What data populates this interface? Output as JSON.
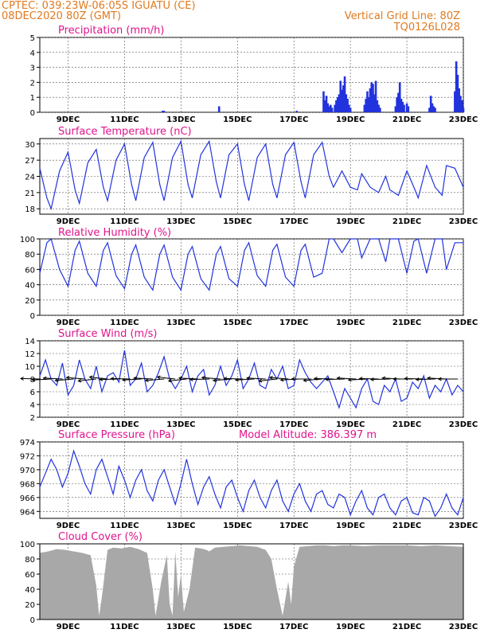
{
  "header": {
    "line1_left": "CPTEC:   039:23W-06:05S  IGUATU (CE)",
    "line2_left": "08DEC2020 80Z (GMT)",
    "line1_right": "Vertical Grid Line: 80Z",
    "line2_right": "TQ0126L028"
  },
  "colors": {
    "header": "#e07a1f",
    "panel_title": "#e0148c",
    "series": "#2233dd",
    "cloud": "#a8a8a8",
    "axis": "#000000"
  },
  "x_axis_labels": [
    "9DEC",
    "11DEC",
    "13DEC",
    "15DEC",
    "17DEC",
    "19DEC",
    "21DEC",
    "23DEC"
  ],
  "chart_data": [
    {
      "id": "precip",
      "type": "bar",
      "title": "Precipitation (mm/h)",
      "ylim": [
        0,
        5
      ],
      "yticks": [
        0,
        1,
        2,
        3,
        4,
        5
      ],
      "xlim": [
        8.0,
        23.0
      ],
      "x": [
        12.35,
        12.4,
        14.35,
        17.1,
        18.05,
        18.1,
        18.15,
        18.2,
        18.25,
        18.3,
        18.35,
        18.45,
        18.5,
        18.55,
        18.6,
        18.65,
        18.7,
        18.75,
        18.8,
        18.85,
        18.9,
        18.95,
        19.0,
        19.5,
        19.55,
        19.6,
        19.65,
        19.7,
        19.75,
        19.8,
        19.85,
        19.9,
        19.95,
        20.0,
        20.05,
        20.6,
        20.65,
        20.7,
        20.75,
        20.8,
        20.85,
        20.9,
        21.0,
        21.05,
        21.8,
        21.85,
        21.9,
        21.95,
        22.0,
        22.7,
        22.75,
        22.8,
        22.85,
        22.9,
        22.95,
        23.0
      ],
      "values": [
        0.1,
        0.1,
        0.4,
        0.1,
        1.4,
        0.8,
        1.1,
        0.6,
        0.4,
        0.5,
        0.3,
        0.5,
        0.8,
        1.0,
        1.2,
        2.1,
        1.5,
        1.8,
        2.4,
        1.2,
        0.9,
        0.5,
        0.3,
        0.5,
        0.9,
        1.4,
        1.0,
        1.6,
        2.0,
        1.9,
        1.2,
        2.1,
        0.8,
        0.5,
        0.3,
        0.4,
        1.0,
        1.3,
        2.0,
        0.9,
        0.7,
        0.5,
        0.6,
        0.4,
        0.3,
        1.1,
        0.6,
        0.4,
        0.3,
        1.4,
        3.4,
        2.5,
        1.6,
        1.1,
        0.8,
        0.3
      ]
    },
    {
      "id": "temperature",
      "type": "line",
      "title": "Surface Temperature (nC)",
      "ylim": [
        17,
        31
      ],
      "yticks": [
        18,
        21,
        24,
        27,
        30
      ],
      "xlim": [
        8.0,
        23.0
      ],
      "x": [
        8.0,
        8.25,
        8.4,
        8.7,
        9.0,
        9.25,
        9.4,
        9.7,
        10.0,
        10.25,
        10.4,
        10.7,
        11.0,
        11.25,
        11.4,
        11.7,
        12.0,
        12.25,
        12.4,
        12.7,
        13.0,
        13.25,
        13.4,
        13.7,
        14.0,
        14.25,
        14.4,
        14.7,
        15.0,
        15.25,
        15.4,
        15.7,
        16.0,
        16.25,
        16.4,
        16.7,
        17.0,
        17.25,
        17.4,
        17.7,
        18.0,
        18.25,
        18.4,
        18.7,
        19.0,
        19.25,
        19.4,
        19.7,
        20.0,
        20.25,
        20.4,
        20.7,
        21.0,
        21.25,
        21.4,
        21.7,
        22.0,
        22.25,
        22.4,
        22.7,
        23.0
      ],
      "values": [
        25.5,
        20.0,
        18.0,
        25.0,
        28.5,
        21.5,
        19.0,
        26.5,
        29.0,
        22.0,
        19.5,
        27.0,
        30.0,
        22.5,
        19.5,
        27.5,
        30.3,
        22.5,
        19.5,
        27.5,
        30.5,
        22.5,
        20.0,
        28.0,
        30.5,
        23.0,
        20.0,
        28.0,
        30.0,
        22.5,
        19.5,
        27.5,
        30.0,
        22.5,
        20.0,
        28.0,
        30.3,
        23.0,
        20.0,
        28.0,
        30.3,
        24.0,
        22.0,
        25.0,
        22.0,
        21.5,
        24.5,
        22.0,
        21.0,
        24.0,
        21.5,
        20.5,
        25.0,
        22.0,
        20.0,
        26.0,
        22.0,
        20.5,
        26.0,
        25.5,
        22.0
      ]
    },
    {
      "id": "humidity",
      "type": "line",
      "title": "Relative Humidity (%)",
      "ylim": [
        0,
        100
      ],
      "yticks": [
        0,
        20,
        40,
        60,
        80,
        100
      ],
      "xlim": [
        8.0,
        23.0
      ],
      "x": [
        8.0,
        8.25,
        8.4,
        8.7,
        9.0,
        9.25,
        9.4,
        9.7,
        10.0,
        10.25,
        10.4,
        10.7,
        11.0,
        11.25,
        11.4,
        11.7,
        12.0,
        12.25,
        12.4,
        12.7,
        13.0,
        13.25,
        13.4,
        13.7,
        14.0,
        14.25,
        14.4,
        14.7,
        15.0,
        15.25,
        15.4,
        15.7,
        16.0,
        16.25,
        16.4,
        16.7,
        17.0,
        17.25,
        17.4,
        17.7,
        18.0,
        18.25,
        18.4,
        18.7,
        19.0,
        19.25,
        19.4,
        19.7,
        20.0,
        20.25,
        20.4,
        20.7,
        21.0,
        21.25,
        21.4,
        21.7,
        22.0,
        22.25,
        22.4,
        22.7,
        23.0
      ],
      "values": [
        55,
        95,
        100,
        60,
        38,
        85,
        97,
        55,
        38,
        85,
        95,
        52,
        35,
        80,
        92,
        50,
        33,
        80,
        92,
        50,
        33,
        80,
        90,
        48,
        33,
        80,
        90,
        48,
        38,
        85,
        95,
        52,
        38,
        85,
        93,
        50,
        38,
        85,
        93,
        50,
        55,
        100,
        100,
        82,
        100,
        100,
        75,
        100,
        100,
        70,
        100,
        100,
        55,
        97,
        100,
        55,
        100,
        100,
        60,
        95,
        95
      ]
    },
    {
      "id": "wind",
      "type": "line",
      "title": "Surface Wind (m/s)",
      "ylim": [
        2,
        14
      ],
      "yticks": [
        2,
        4,
        6,
        8,
        10,
        12,
        14
      ],
      "xlim": [
        8.0,
        23.0
      ],
      "x": [
        8.0,
        8.2,
        8.4,
        8.6,
        8.8,
        9.0,
        9.2,
        9.4,
        9.6,
        9.8,
        10.0,
        10.2,
        10.4,
        10.6,
        10.8,
        11.0,
        11.2,
        11.4,
        11.6,
        11.8,
        12.0,
        12.2,
        12.4,
        12.6,
        12.8,
        13.0,
        13.2,
        13.4,
        13.6,
        13.8,
        14.0,
        14.2,
        14.4,
        14.6,
        14.8,
        15.0,
        15.2,
        15.4,
        15.6,
        15.8,
        16.0,
        16.2,
        16.4,
        16.6,
        16.8,
        17.0,
        17.2,
        17.4,
        17.6,
        17.8,
        18.0,
        18.2,
        18.4,
        18.6,
        18.8,
        19.0,
        19.2,
        19.4,
        19.6,
        19.8,
        20.0,
        20.2,
        20.4,
        20.6,
        20.8,
        21.0,
        21.2,
        21.4,
        21.6,
        21.8,
        22.0,
        22.2,
        22.4,
        22.6,
        22.8,
        23.0
      ],
      "values": [
        8.5,
        11.0,
        8.0,
        7.0,
        10.5,
        5.5,
        7.0,
        11.0,
        8.0,
        6.5,
        10.0,
        6.0,
        8.5,
        9.0,
        7.5,
        12.5,
        7.0,
        8.0,
        10.5,
        6.0,
        7.0,
        9.0,
        11.5,
        8.0,
        6.5,
        8.0,
        10.0,
        6.0,
        8.5,
        9.5,
        5.5,
        7.0,
        10.0,
        7.0,
        8.5,
        11.0,
        6.5,
        8.0,
        10.5,
        7.0,
        6.5,
        9.5,
        8.0,
        10.0,
        6.5,
        7.0,
        11.0,
        9.0,
        7.5,
        6.5,
        7.5,
        8.5,
        6.0,
        3.5,
        6.5,
        5.0,
        3.5,
        6.5,
        8.0,
        4.5,
        4.0,
        7.0,
        6.0,
        8.0,
        4.5,
        5.0,
        7.5,
        6.5,
        8.5,
        5.0,
        7.0,
        6.0,
        8.0,
        5.5,
        7.0,
        6.0
      ],
      "vectors_x": [
        8.0,
        8.4,
        8.8,
        9.2,
        9.6,
        10.0,
        10.4,
        10.8,
        11.2,
        11.6,
        12.0,
        12.4,
        12.8,
        13.2,
        13.6,
        14.0,
        14.4,
        14.8,
        15.2,
        15.6,
        16.0,
        16.4,
        16.8,
        17.2,
        17.6,
        18.0,
        18.4,
        18.8,
        19.2,
        19.6,
        20.0,
        20.4,
        20.8,
        21.2,
        21.6,
        22.0,
        22.4,
        22.8
      ],
      "vectors_dir_deg": [
        95,
        80,
        100,
        75,
        105,
        70,
        110,
        85,
        95,
        80,
        100,
        75,
        110,
        70,
        100,
        85,
        105,
        75,
        95,
        80,
        100,
        70,
        105,
        80,
        90,
        75,
        95,
        85,
        100,
        80,
        95,
        85,
        100,
        90,
        95,
        85,
        100,
        90
      ]
    },
    {
      "id": "pressure",
      "type": "line",
      "title": "Surface Pressure (hPa)",
      "subtitle": "Model Altitude: 386.397 m",
      "ylim": [
        963,
        974
      ],
      "yticks": [
        964,
        966,
        968,
        970,
        972,
        974
      ],
      "xlim": [
        8.0,
        23.0
      ],
      "x": [
        8.0,
        8.2,
        8.4,
        8.6,
        8.8,
        9.0,
        9.2,
        9.4,
        9.6,
        9.8,
        10.0,
        10.2,
        10.4,
        10.6,
        10.8,
        11.0,
        11.2,
        11.4,
        11.6,
        11.8,
        12.0,
        12.2,
        12.4,
        12.6,
        12.8,
        13.0,
        13.2,
        13.4,
        13.6,
        13.8,
        14.0,
        14.2,
        14.4,
        14.6,
        14.8,
        15.0,
        15.2,
        15.4,
        15.6,
        15.8,
        16.0,
        16.2,
        16.4,
        16.6,
        16.8,
        17.0,
        17.2,
        17.4,
        17.6,
        17.8,
        18.0,
        18.2,
        18.4,
        18.6,
        18.8,
        19.0,
        19.2,
        19.4,
        19.6,
        19.8,
        20.0,
        20.2,
        20.4,
        20.6,
        20.8,
        21.0,
        21.2,
        21.4,
        21.6,
        21.8,
        22.0,
        22.2,
        22.4,
        22.6,
        22.8,
        23.0
      ],
      "values": [
        967.5,
        969.5,
        971.5,
        970.0,
        967.5,
        969.5,
        972.7,
        970.5,
        968.0,
        966.5,
        970.0,
        971.5,
        969.0,
        966.5,
        970.5,
        968.5,
        966.0,
        968.5,
        970.0,
        967.0,
        965.5,
        968.5,
        970.0,
        967.5,
        965.0,
        968.0,
        971.5,
        968.0,
        965.0,
        967.5,
        969.0,
        966.5,
        964.5,
        967.5,
        968.5,
        966.0,
        964.0,
        967.0,
        968.5,
        966.0,
        964.5,
        967.0,
        968.5,
        965.5,
        964.0,
        966.5,
        968.0,
        965.5,
        964.0,
        966.5,
        967.0,
        965.0,
        964.5,
        966.5,
        966.0,
        963.5,
        965.5,
        967.0,
        964.5,
        963.5,
        966.0,
        966.5,
        964.5,
        963.5,
        965.5,
        966.0,
        963.8,
        963.5,
        966.0,
        965.5,
        963.3,
        964.5,
        966.5,
        964.5,
        963.5,
        966.0
      ]
    },
    {
      "id": "cloud",
      "type": "area",
      "title": "Cloud Cover (%)",
      "ylim": [
        0,
        100
      ],
      "yticks": [
        0,
        20,
        40,
        60,
        80,
        100
      ],
      "xlim": [
        8.0,
        23.0
      ],
      "x": [
        8.0,
        8.3,
        8.6,
        8.9,
        9.2,
        9.5,
        9.8,
        10.0,
        10.1,
        10.2,
        10.4,
        10.6,
        10.9,
        11.2,
        11.5,
        11.8,
        12.0,
        12.1,
        12.3,
        12.5,
        12.6,
        12.7,
        12.8,
        12.9,
        13.0,
        13.1,
        13.3,
        13.5,
        13.7,
        13.9,
        14.0,
        14.2,
        14.5,
        14.8,
        15.1,
        15.4,
        15.7,
        16.0,
        16.2,
        16.4,
        16.6,
        16.8,
        16.9,
        17.0,
        17.2,
        17.5,
        17.8,
        18.1,
        18.4,
        18.7,
        19.0,
        19.5,
        20.0,
        20.5,
        21.0,
        21.5,
        22.0,
        22.5,
        23.0
      ],
      "values": [
        88,
        90,
        93,
        92,
        90,
        88,
        85,
        45,
        5,
        30,
        92,
        95,
        94,
        96,
        93,
        88,
        40,
        5,
        50,
        85,
        20,
        5,
        90,
        30,
        60,
        10,
        40,
        95,
        94,
        92,
        90,
        95,
        96,
        97,
        98,
        97,
        96,
        92,
        80,
        40,
        5,
        50,
        20,
        70,
        96,
        97,
        98,
        98,
        97,
        98,
        98,
        97,
        98,
        98,
        98,
        97,
        98,
        97,
        96
      ]
    }
  ]
}
